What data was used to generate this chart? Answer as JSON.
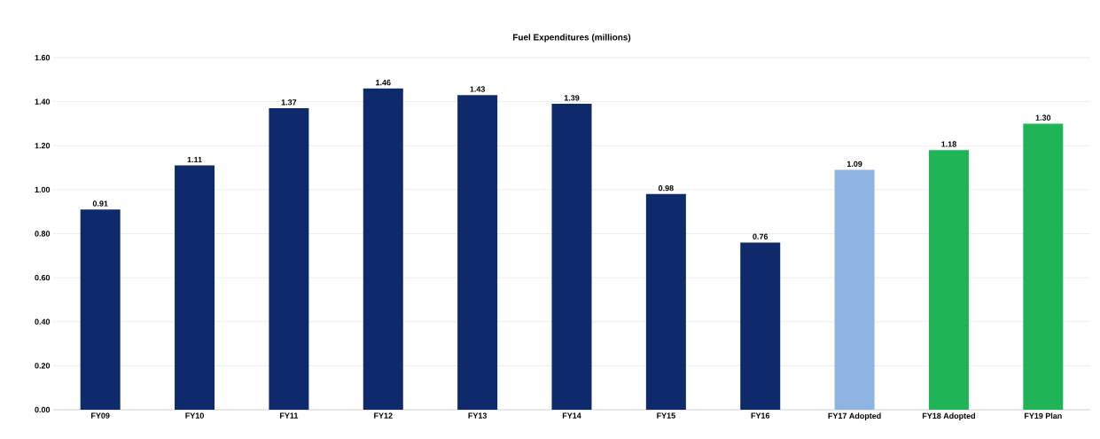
{
  "chart_data": {
    "type": "bar",
    "title": "Fuel Expenditures (millions)",
    "categories": [
      "FY09",
      "FY10",
      "FY11",
      "FY12",
      "FY13",
      "FY14",
      "FY15",
      "FY16",
      "FY17 Adopted",
      "FY18 Adopted",
      "FY19 Plan"
    ],
    "values": [
      0.91,
      1.11,
      1.37,
      1.46,
      1.43,
      1.39,
      0.98,
      0.76,
      1.09,
      1.18,
      1.3
    ],
    "value_labels": [
      "0.91",
      "1.11",
      "1.37",
      "1.46",
      "1.43",
      "1.39",
      "0.98",
      "0.76",
      "1.09",
      "1.18",
      "1.30"
    ],
    "colors": [
      "#0f2a6b",
      "#0f2a6b",
      "#0f2a6b",
      "#0f2a6b",
      "#0f2a6b",
      "#0f2a6b",
      "#0f2a6b",
      "#0f2a6b",
      "#8eb4e3",
      "#1fb557",
      "#1fb557"
    ],
    "ylim": [
      0,
      1.6
    ],
    "yticks": [
      {
        "value": 0,
        "label": "0.00"
      },
      {
        "value": 0.2,
        "label": "0.20"
      },
      {
        "value": 0.4,
        "label": "0.40"
      },
      {
        "value": 0.6,
        "label": "0.60"
      },
      {
        "value": 0.8,
        "label": "0.80"
      },
      {
        "value": 1.0,
        "label": "1.00"
      },
      {
        "value": 1.2,
        "label": "1.20"
      },
      {
        "value": 1.4,
        "label": "1.40"
      },
      {
        "value": 1.6,
        "label": "1.60"
      }
    ],
    "grid": "y"
  }
}
